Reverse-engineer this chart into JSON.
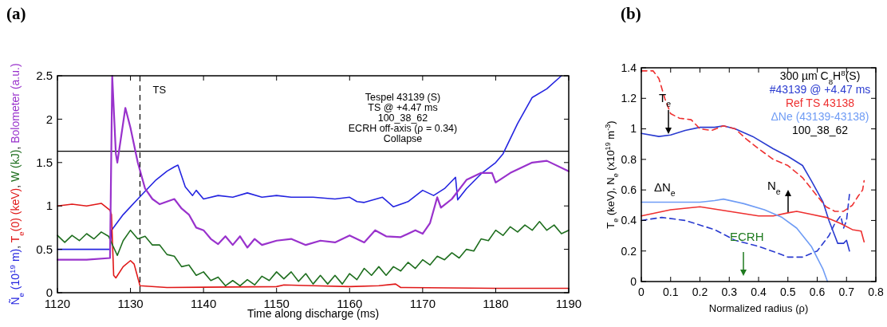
{
  "chart_data": [
    {
      "type": "line",
      "title": "(a)",
      "xlabel": "Time along discharge (ms)",
      "ylabel": "Ñ$_{e}$ (10$^{19}$ m), T$_{e}$(0) (keV), W (kJ), Bolometer (a.u.)",
      "xlim": [
        1120,
        1190
      ],
      "xticks": [
        1120,
        1130,
        1140,
        1150,
        1160,
        1170,
        1180,
        1190
      ],
      "ylim": [
        0,
        2.5
      ],
      "yticks": [
        0,
        0.5,
        1,
        1.5,
        2,
        2.5
      ],
      "grid": false,
      "legend": false,
      "ref_lines": [
        {
          "axis": "x",
          "value": 1131.3,
          "label": "TS",
          "line_style": "dashed",
          "color": "#000000"
        },
        {
          "axis": "y",
          "value": 1.63,
          "label": null,
          "line_style": "solid",
          "color": "#000000"
        }
      ],
      "annotations": [
        "Tespel 43139 (S)",
        "TS @ +4.47 ms",
        "100_38_62",
        "ECRH off-axis (ρ = 0.34)",
        "Collapse"
      ],
      "series": [
        {
          "color": "#2424e0",
          "x": [
            1120,
            1124,
            1127.2,
            1127.4,
            1129,
            1131,
            1133.5,
            1135,
            1136,
            1136.5,
            1137.5,
            1138.5,
            1139,
            1140,
            1142,
            1144,
            1146,
            1148,
            1150,
            1152,
            1155,
            1158,
            1160,
            1161,
            1162,
            1164.5,
            1166,
            1168,
            1170,
            1171.5,
            1173,
            1174.5,
            1174.8,
            1176,
            1178,
            1180,
            1181,
            1183,
            1185,
            1187,
            1189
          ],
          "values": [
            0.5,
            0.5,
            0.5,
            0.72,
            0.9,
            1.08,
            1.3,
            1.4,
            1.45,
            1.47,
            1.22,
            1.12,
            1.18,
            1.08,
            1.12,
            1.1,
            1.15,
            1.1,
            1.12,
            1.1,
            1.1,
            1.08,
            1.1,
            1.05,
            1.04,
            1.1,
            0.99,
            1.05,
            1.18,
            1.12,
            1.2,
            1.33,
            1.07,
            1.2,
            1.37,
            1.5,
            1.6,
            1.95,
            2.25,
            2.35,
            2.5
          ]
        },
        {
          "color": "#e01818",
          "x": [
            1120,
            1122,
            1124,
            1126,
            1127.2,
            1127.4,
            1127.7,
            1128,
            1129,
            1130,
            1130.5,
            1131.3,
            1135,
            1150,
            1151,
            1155,
            1160,
            1164,
            1166.3,
            1167,
            1180,
            1190
          ],
          "values": [
            1.0,
            1.02,
            1.0,
            1.03,
            0.95,
            0.9,
            0.2,
            0.17,
            0.3,
            0.37,
            0.33,
            0.08,
            0.06,
            0.07,
            0.09,
            0.08,
            0.07,
            0.08,
            0.1,
            0.06,
            0.05,
            0.05
          ]
        },
        {
          "color": "#1e6e1e",
          "x": [
            1120,
            1121,
            1122,
            1123,
            1124,
            1125,
            1126,
            1127,
            1128.2,
            1129,
            1130,
            1131,
            1132,
            1133,
            1134,
            1135,
            1136,
            1137,
            1138,
            1139,
            1140,
            1141,
            1142,
            1143,
            1144,
            1145,
            1146,
            1147,
            1148,
            1149,
            1150,
            1151,
            1152,
            1153,
            1154,
            1155,
            1156,
            1157,
            1158,
            1159,
            1160,
            1161,
            1162,
            1163,
            1164,
            1165,
            1166,
            1167,
            1168,
            1169,
            1170,
            1171,
            1172,
            1173,
            1174,
            1175,
            1176,
            1177,
            1178,
            1179,
            1180,
            1181,
            1182,
            1183,
            1184,
            1185,
            1186,
            1187,
            1188,
            1189,
            1190
          ],
          "values": [
            0.66,
            0.58,
            0.66,
            0.6,
            0.68,
            0.62,
            0.7,
            0.65,
            0.43,
            0.6,
            0.72,
            0.62,
            0.65,
            0.55,
            0.55,
            0.44,
            0.42,
            0.3,
            0.32,
            0.2,
            0.24,
            0.14,
            0.18,
            0.08,
            0.14,
            0.08,
            0.15,
            0.09,
            0.19,
            0.14,
            0.24,
            0.16,
            0.24,
            0.13,
            0.22,
            0.1,
            0.2,
            0.1,
            0.2,
            0.1,
            0.22,
            0.15,
            0.28,
            0.2,
            0.3,
            0.2,
            0.3,
            0.25,
            0.35,
            0.28,
            0.38,
            0.32,
            0.42,
            0.38,
            0.46,
            0.4,
            0.5,
            0.48,
            0.62,
            0.6,
            0.72,
            0.66,
            0.76,
            0.7,
            0.78,
            0.72,
            0.82,
            0.72,
            0.78,
            0.68,
            0.72
          ]
        },
        {
          "color": "#9932cc",
          "x": [
            1120,
            1124,
            1127.2,
            1127.5,
            1128,
            1128.2,
            1129.3,
            1130,
            1131,
            1132,
            1133,
            1134,
            1135,
            1136,
            1137,
            1138,
            1139,
            1140,
            1141,
            1142,
            1143,
            1144,
            1145,
            1146,
            1147,
            1148,
            1150,
            1152,
            1154,
            1156,
            1158,
            1160,
            1162,
            1163.5,
            1165,
            1167,
            1169,
            1170,
            1171,
            1172,
            1172.5,
            1174,
            1176,
            1178,
            1179.5,
            1180,
            1182,
            1185,
            1187,
            1190
          ],
          "values": [
            0.38,
            0.38,
            0.4,
            2.5,
            1.6,
            1.5,
            2.13,
            1.9,
            1.5,
            1.2,
            1.08,
            1.02,
            1.05,
            1.08,
            0.97,
            0.9,
            0.75,
            0.72,
            0.62,
            0.56,
            0.65,
            0.55,
            0.65,
            0.52,
            0.62,
            0.55,
            0.6,
            0.62,
            0.55,
            0.6,
            0.58,
            0.66,
            0.58,
            0.72,
            0.65,
            0.64,
            0.72,
            0.68,
            0.8,
            1.1,
            0.98,
            1.08,
            1.3,
            1.38,
            1.38,
            1.27,
            1.38,
            1.5,
            1.52,
            1.4
          ]
        }
      ]
    },
    {
      "type": "line",
      "title": "(b)",
      "xlabel": "Normalized radius (ρ)",
      "ylabel": "T$_{e}$ (keV), N$_{e}$ (x10$^{19}$ m$^{-3}$)",
      "legend_title": "300 µm C$_{8}$H$^{8}$(S)",
      "xlim": [
        0,
        0.8
      ],
      "xticks": [
        0,
        0.1,
        0.2,
        0.3,
        0.4,
        0.5,
        0.6,
        0.7,
        0.8
      ],
      "ylim": [
        0,
        1.4
      ],
      "yticks": [
        0,
        0.2,
        0.4,
        0.6,
        0.8,
        1,
        1.2,
        1.4
      ],
      "grid": false,
      "legend": "top right",
      "annotations": [
        "T$_{e}$",
        "N$_{e}$",
        "ΔN$_{e}$",
        "ECRH",
        "100_38_62"
      ],
      "series": [
        {
          "name": "#43139 @ +4.47 ms",
          "color": "#2a3bd0",
          "line_style": "solid",
          "x": [
            0,
            0.06,
            0.1,
            0.15,
            0.2,
            0.25,
            0.28,
            0.32,
            0.38,
            0.45,
            0.5,
            0.55,
            0.58,
            0.62,
            0.64,
            0.66,
            0.67,
            0.69,
            0.7,
            0.71
          ],
          "values": [
            0.97,
            0.95,
            0.96,
            0.99,
            1.01,
            1.01,
            1.02,
            1.0,
            0.95,
            0.87,
            0.82,
            0.76,
            0.66,
            0.52,
            0.4,
            0.3,
            0.25,
            0.25,
            0.27,
            0.2
          ]
        },
        {
          "color": "#2a3bd0",
          "line_style": "dashed",
          "x": [
            0,
            0.07,
            0.15,
            0.25,
            0.32,
            0.4,
            0.46,
            0.5,
            0.55,
            0.6,
            0.64,
            0.66,
            0.68,
            0.69,
            0.7,
            0.71
          ],
          "values": [
            0.4,
            0.42,
            0.4,
            0.34,
            0.27,
            0.23,
            0.19,
            0.16,
            0.16,
            0.2,
            0.3,
            0.38,
            0.43,
            0.35,
            0.4,
            0.57
          ]
        },
        {
          "name": "Ref TS 43138",
          "color": "#ee3030",
          "line_style": "dashed",
          "x": [
            0,
            0.04,
            0.06,
            0.08,
            0.1,
            0.13,
            0.17,
            0.2,
            0.24,
            0.28,
            0.32,
            0.36,
            0.4,
            0.45,
            0.5,
            0.55,
            0.6,
            0.63,
            0.66,
            0.69,
            0.72,
            0.74,
            0.755,
            0.76
          ],
          "values": [
            1.38,
            1.38,
            1.33,
            1.2,
            1.1,
            1.07,
            1.06,
            1.0,
            0.99,
            1.02,
            1.0,
            0.93,
            0.87,
            0.8,
            0.76,
            0.68,
            0.56,
            0.49,
            0.46,
            0.46,
            0.5,
            0.56,
            0.6,
            0.66
          ]
        },
        {
          "color": "#ee3030",
          "line_style": "solid",
          "x": [
            0,
            0.1,
            0.2,
            0.3,
            0.4,
            0.45,
            0.5,
            0.53,
            0.58,
            0.63,
            0.68,
            0.72,
            0.75,
            0.76
          ],
          "values": [
            0.43,
            0.47,
            0.49,
            0.46,
            0.43,
            0.43,
            0.45,
            0.46,
            0.44,
            0.42,
            0.38,
            0.34,
            0.33,
            0.26
          ]
        },
        {
          "name": "ΔNe (43139-43138)",
          "color": "#6f9cf5",
          "line_style": "solid",
          "x": [
            0,
            0.1,
            0.2,
            0.25,
            0.28,
            0.35,
            0.42,
            0.48,
            0.53,
            0.58,
            0.62,
            0.635
          ],
          "values": [
            0.52,
            0.52,
            0.52,
            0.53,
            0.54,
            0.51,
            0.47,
            0.42,
            0.35,
            0.23,
            0.08,
            0
          ]
        }
      ]
    }
  ]
}
